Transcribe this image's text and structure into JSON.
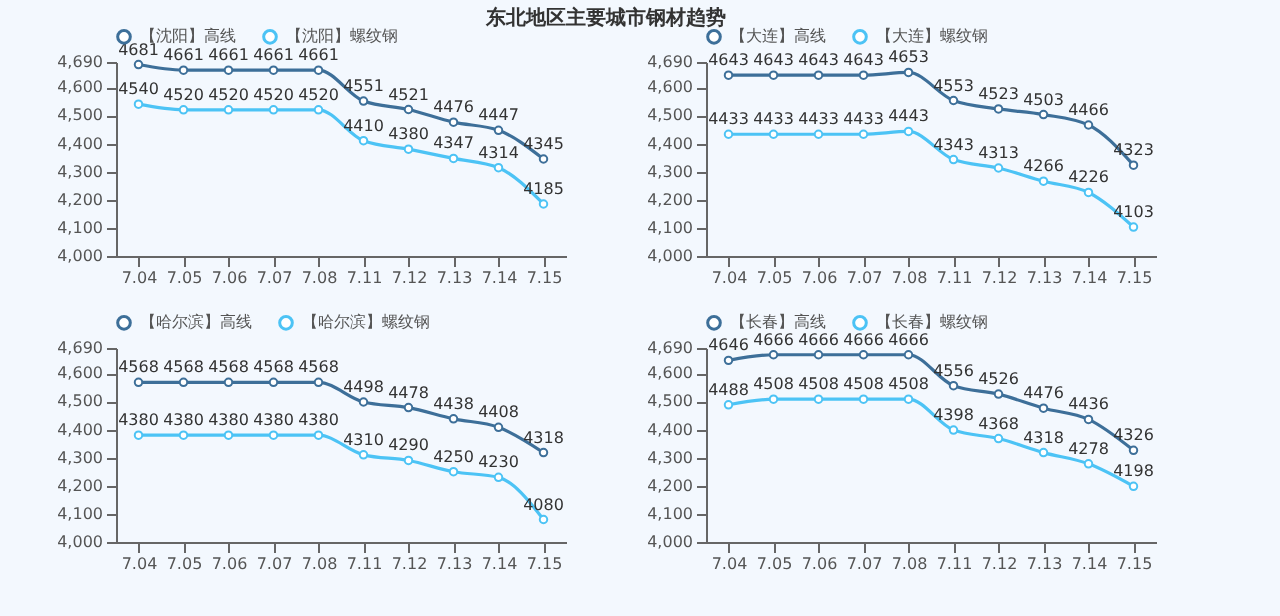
{
  "chart_data": [
    {
      "type": "line",
      "title": "东北地区主要城市钢材趋势",
      "categories": [
        "7.04",
        "7.05",
        "7.06",
        "7.07",
        "7.08",
        "7.11",
        "7.12",
        "7.13",
        "7.14",
        "7.15"
      ],
      "ylim": [
        4000,
        4690
      ],
      "yticks": [
        {
          "value": 4000,
          "label": "4,000"
        },
        {
          "value": 4100,
          "label": "4,100"
        },
        {
          "value": 4200,
          "label": "4,200"
        },
        {
          "value": 4300,
          "label": "4,300"
        },
        {
          "value": 4400,
          "label": "4,400"
        },
        {
          "value": 4500,
          "label": "4,500"
        },
        {
          "value": 4600,
          "label": "4,600"
        },
        {
          "value": 4690,
          "label": "4,690"
        }
      ],
      "legend": "top",
      "marker": "circle",
      "data_labels": true,
      "series": [
        {
          "name": "【沈阳】高线",
          "color": "#3d6f99",
          "values": [
            4681,
            4661,
            4661,
            4661,
            4661,
            4551,
            4521,
            4476,
            4447,
            4345
          ]
        },
        {
          "name": "【沈阳】螺纹钢",
          "color": "#4cc3f5",
          "values": [
            4540,
            4520,
            4520,
            4520,
            4520,
            4410,
            4380,
            4347,
            4314,
            4185
          ]
        }
      ]
    },
    {
      "type": "line",
      "categories": [
        "7.04",
        "7.05",
        "7.06",
        "7.07",
        "7.08",
        "7.11",
        "7.12",
        "7.13",
        "7.14",
        "7.15"
      ],
      "ylim": [
        4000,
        4690
      ],
      "yticks": [
        {
          "value": 4000,
          "label": "4,000"
        },
        {
          "value": 4100,
          "label": "4,100"
        },
        {
          "value": 4200,
          "label": "4,200"
        },
        {
          "value": 4300,
          "label": "4,300"
        },
        {
          "value": 4400,
          "label": "4,400"
        },
        {
          "value": 4500,
          "label": "4,500"
        },
        {
          "value": 4600,
          "label": "4,600"
        },
        {
          "value": 4690,
          "label": "4,690"
        }
      ],
      "legend": "top",
      "marker": "circle",
      "data_labels": true,
      "series": [
        {
          "name": "【大连】高线",
          "color": "#3d6f99",
          "values": [
            4643,
            4643,
            4643,
            4643,
            4653,
            4553,
            4523,
            4503,
            4466,
            4323
          ]
        },
        {
          "name": "【大连】螺纹钢",
          "color": "#4cc3f5",
          "values": [
            4433,
            4433,
            4433,
            4433,
            4443,
            4343,
            4313,
            4266,
            4226,
            4103
          ]
        }
      ]
    },
    {
      "type": "line",
      "categories": [
        "7.04",
        "7.05",
        "7.06",
        "7.07",
        "7.08",
        "7.11",
        "7.12",
        "7.13",
        "7.14",
        "7.15"
      ],
      "ylim": [
        4000,
        4690
      ],
      "yticks": [
        {
          "value": 4000,
          "label": "4,000"
        },
        {
          "value": 4100,
          "label": "4,100"
        },
        {
          "value": 4200,
          "label": "4,200"
        },
        {
          "value": 4300,
          "label": "4,300"
        },
        {
          "value": 4400,
          "label": "4,400"
        },
        {
          "value": 4500,
          "label": "4,500"
        },
        {
          "value": 4600,
          "label": "4,600"
        },
        {
          "value": 4690,
          "label": "4,690"
        }
      ],
      "legend": "top",
      "marker": "circle",
      "data_labels": true,
      "series": [
        {
          "name": "【哈尔滨】高线",
          "color": "#3d6f99",
          "values": [
            4568,
            4568,
            4568,
            4568,
            4568,
            4498,
            4478,
            4438,
            4408,
            4318
          ]
        },
        {
          "name": "【哈尔滨】螺纹钢",
          "color": "#4cc3f5",
          "values": [
            4380,
            4380,
            4380,
            4380,
            4380,
            4310,
            4290,
            4250,
            4230,
            4080
          ]
        }
      ]
    },
    {
      "type": "line",
      "categories": [
        "7.04",
        "7.05",
        "7.06",
        "7.07",
        "7.08",
        "7.11",
        "7.12",
        "7.13",
        "7.14",
        "7.15"
      ],
      "ylim": [
        4000,
        4690
      ],
      "yticks": [
        {
          "value": 4000,
          "label": "4,000"
        },
        {
          "value": 4100,
          "label": "4,100"
        },
        {
          "value": 4200,
          "label": "4,200"
        },
        {
          "value": 4300,
          "label": "4,300"
        },
        {
          "value": 4400,
          "label": "4,400"
        },
        {
          "value": 4500,
          "label": "4,500"
        },
        {
          "value": 4600,
          "label": "4,600"
        },
        {
          "value": 4690,
          "label": "4,690"
        }
      ],
      "legend": "top",
      "marker": "circle",
      "data_labels": true,
      "series": [
        {
          "name": "【长春】高线",
          "color": "#3d6f99",
          "values": [
            4646,
            4666,
            4666,
            4666,
            4666,
            4556,
            4526,
            4476,
            4436,
            4326
          ]
        },
        {
          "name": "【长春】螺纹钢",
          "color": "#4cc3f5",
          "values": [
            4488,
            4508,
            4508,
            4508,
            4508,
            4398,
            4368,
            4318,
            4278,
            4198
          ]
        }
      ]
    }
  ]
}
